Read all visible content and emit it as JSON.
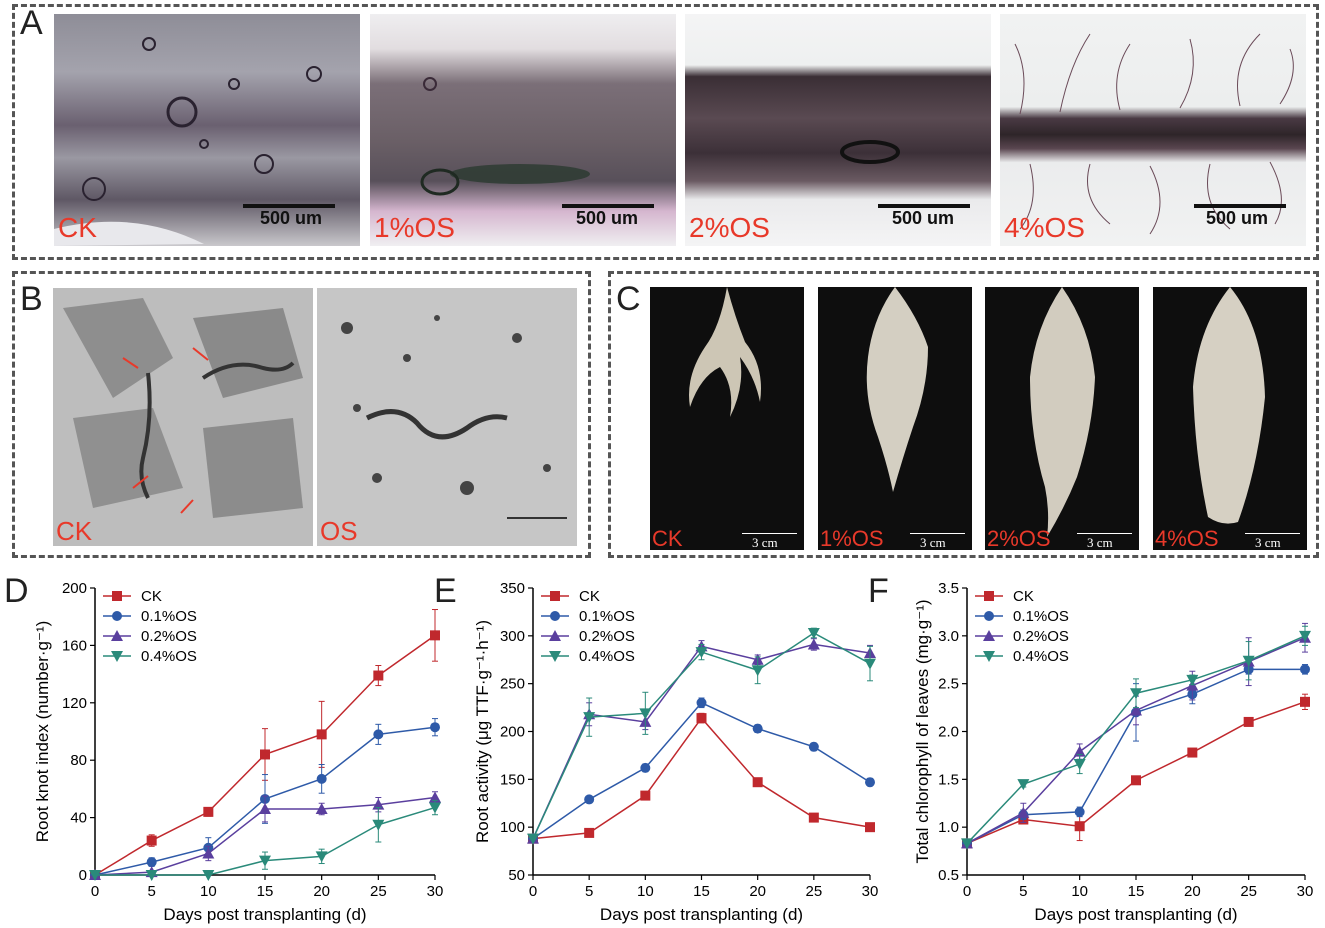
{
  "figure": {
    "panel_a": {
      "label": "A",
      "scale_text": "500 um",
      "conditions": [
        "CK",
        "1%OS",
        "2%OS",
        "4%OS"
      ]
    },
    "panel_b": {
      "label": "B",
      "conditions": [
        "CK",
        "OS"
      ]
    },
    "panel_c": {
      "label": "C",
      "scale_text": "3 cm",
      "conditions": [
        "CK",
        "1%OS",
        "2%OS",
        "4%OS"
      ]
    }
  },
  "colors": {
    "condition_text": "#e8392a",
    "CK": "#c0282d",
    "s01": "#2e5aa8",
    "s02": "#5a3f9e",
    "s04": "#2a8a7a"
  },
  "chart_data": [
    {
      "panel": "D",
      "type": "line",
      "xlabel": "Days post transplanting (d)",
      "ylabel": "Root knot index (number·g⁻¹)",
      "xlim": [
        0,
        30
      ],
      "ylim": [
        0,
        200
      ],
      "xticks": [
        0,
        5,
        10,
        15,
        20,
        25,
        30
      ],
      "yticks": [
        0,
        40,
        80,
        120,
        160,
        200
      ],
      "x": [
        0,
        5,
        10,
        15,
        20,
        25,
        30
      ],
      "legend_position": "top-left",
      "series": [
        {
          "name": "CK",
          "values": [
            0,
            24,
            44,
            84,
            98,
            139,
            167
          ],
          "errors": [
            0,
            4,
            3,
            18,
            23,
            7,
            18
          ]
        },
        {
          "name": "0.1%OS",
          "values": [
            0,
            9,
            19,
            53,
            67,
            98,
            103
          ],
          "errors": [
            0,
            3,
            7,
            17,
            10,
            7,
            6
          ]
        },
        {
          "name": "0.2%OS",
          "values": [
            0,
            2,
            15,
            46,
            46,
            49,
            54
          ],
          "errors": [
            0,
            1,
            5,
            9,
            4,
            5,
            4
          ]
        },
        {
          "name": "0.4%OS",
          "values": [
            0,
            0,
            0,
            10,
            13,
            35,
            47
          ],
          "errors": [
            0,
            0,
            0,
            6,
            5,
            12,
            5
          ]
        }
      ]
    },
    {
      "panel": "E",
      "type": "line",
      "xlabel": "Days post transplanting (d)",
      "ylabel": "Root activity (μg TTF·g⁻¹·h⁻¹)",
      "xlim": [
        0,
        30
      ],
      "ylim": [
        50,
        350
      ],
      "xticks": [
        0,
        5,
        10,
        15,
        20,
        25,
        30
      ],
      "yticks": [
        50,
        100,
        150,
        200,
        250,
        300,
        350
      ],
      "x": [
        0,
        5,
        10,
        15,
        20,
        25,
        30
      ],
      "legend_position": "top-left",
      "series": [
        {
          "name": "CK",
          "values": [
            88,
            94,
            133,
            214,
            147,
            110,
            100
          ],
          "errors": [
            0,
            3,
            4,
            5,
            4,
            3,
            3
          ]
        },
        {
          "name": "0.1%OS",
          "values": [
            88,
            129,
            162,
            230,
            203,
            184,
            147
          ],
          "errors": [
            0,
            3,
            4,
            5,
            4,
            4,
            4
          ]
        },
        {
          "name": "0.2%OS",
          "values": [
            88,
            218,
            210,
            289,
            275,
            291,
            282
          ],
          "errors": [
            0,
            12,
            8,
            6,
            5,
            6,
            8
          ]
        },
        {
          "name": "0.4%OS",
          "values": [
            88,
            215,
            219,
            283,
            264,
            303,
            271
          ],
          "errors": [
            0,
            20,
            22,
            8,
            14,
            5,
            18
          ]
        }
      ]
    },
    {
      "panel": "F",
      "type": "line",
      "xlabel": "Days post transplanting (d)",
      "ylabel": "Total chlorophyll of leaves (mg·g⁻¹)",
      "xlim": [
        0,
        30
      ],
      "ylim": [
        0.5,
        3.5
      ],
      "xticks": [
        0,
        5,
        10,
        15,
        20,
        25,
        30
      ],
      "yticks": [
        0.5,
        1.0,
        1.5,
        2.0,
        2.5,
        3.0,
        3.5
      ],
      "x": [
        0,
        5,
        10,
        15,
        20,
        25,
        30
      ],
      "legend_position": "top-left",
      "series": [
        {
          "name": "CK",
          "values": [
            0.83,
            1.08,
            1.01,
            1.49,
            1.78,
            2.1,
            2.31
          ],
          "errors": [
            0,
            0.04,
            0.15,
            0.03,
            0.03,
            0.03,
            0.08
          ]
        },
        {
          "name": "0.1%OS",
          "values": [
            0.83,
            1.13,
            1.16,
            2.2,
            2.39,
            2.65,
            2.65
          ],
          "errors": [
            0,
            0.05,
            0.05,
            0.3,
            0.1,
            0.05,
            0.05
          ]
        },
        {
          "name": "0.2%OS",
          "values": [
            0.83,
            1.15,
            1.79,
            2.22,
            2.48,
            2.73,
            2.98
          ],
          "errors": [
            0,
            0.1,
            0.08,
            0.15,
            0.15,
            0.25,
            0.15
          ]
        },
        {
          "name": "0.4%OS",
          "values": [
            0.83,
            1.45,
            1.66,
            2.4,
            2.54,
            2.74,
            3.0
          ],
          "errors": [
            0,
            0.03,
            0.1,
            0.15,
            0.05,
            0.2,
            0.1
          ]
        }
      ]
    }
  ]
}
